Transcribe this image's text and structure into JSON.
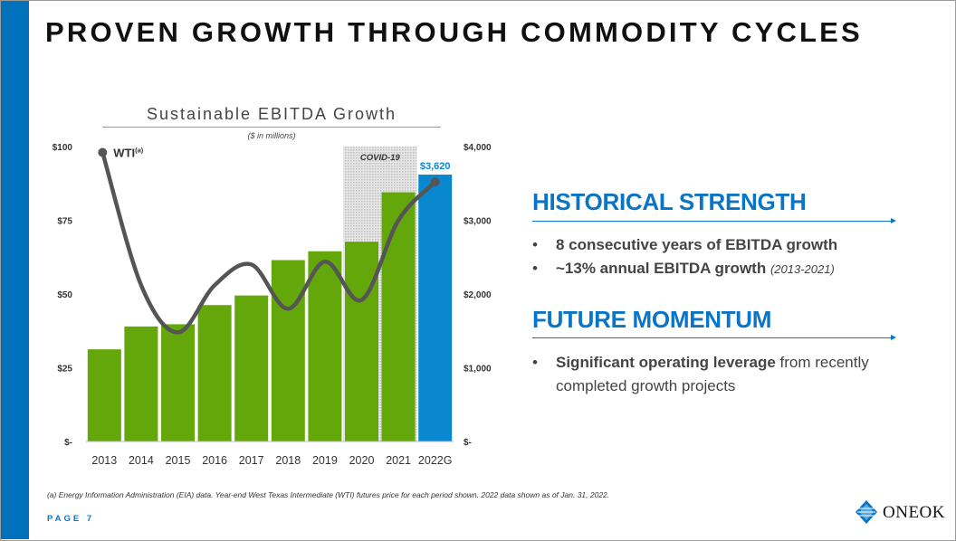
{
  "slide": {
    "title": "PROVEN GROWTH THROUGH COMMODITY CYCLES",
    "page_label": "PAGE 7",
    "footnote": "(a) Energy Information Administration (EIA) data. Year-end West Texas Intermediate (WTI) futures price for each period shown. 2022 data shown as of Jan. 31, 2022.",
    "logo_text": "ONEOK",
    "accent_color": "#0a74c6"
  },
  "chart_data": {
    "type": "bar",
    "title": "Sustainable EBITDA Growth",
    "subtitle": "($ in millions)",
    "categories": [
      "2013",
      "2014",
      "2015",
      "2016",
      "2017",
      "2018",
      "2019",
      "2020",
      "2021",
      "2022G"
    ],
    "series": [
      {
        "values": [
          1250,
          1560,
          1590,
          1850,
          1980,
          2460,
          2580,
          2710,
          3380,
          3620
        ],
        "color": "#64a70b",
        "highlight_last_color": "#0a88cf"
      },
      {
        "name": "WTI",
        "name_superscript": "(a)",
        "type": "line",
        "axis": "left",
        "values": [
          98,
          53,
          37,
          53,
          60,
          45,
          61,
          48,
          75,
          88
        ],
        "color": "#555555"
      }
    ],
    "last_value_label": "$3,620",
    "left_axis": {
      "ticks": [
        "$-",
        "$25",
        "$50",
        "$75",
        "$100"
      ],
      "range": [
        0,
        100
      ]
    },
    "right_axis": {
      "ticks": [
        "$-",
        "$1,000",
        "$2,000",
        "$3,000",
        "$4,000"
      ],
      "range": [
        0,
        4000
      ]
    },
    "annotation": {
      "label": "COVID-19",
      "category": "2020"
    }
  },
  "right_panel": {
    "sections": [
      {
        "heading": "HISTORICAL STRENGTH",
        "bullets": [
          {
            "strong": "8 consecutive years of EBITDA growth",
            "rest": "",
            "note": ""
          },
          {
            "strong": "~13% annual EBITDA growth",
            "rest": "",
            "note": "(2013-2021)"
          }
        ]
      },
      {
        "heading": "FUTURE MOMENTUM",
        "bullets": [
          {
            "strong": "Significant operating leverage",
            "rest": " from recently completed growth projects",
            "note": ""
          }
        ]
      }
    ]
  }
}
